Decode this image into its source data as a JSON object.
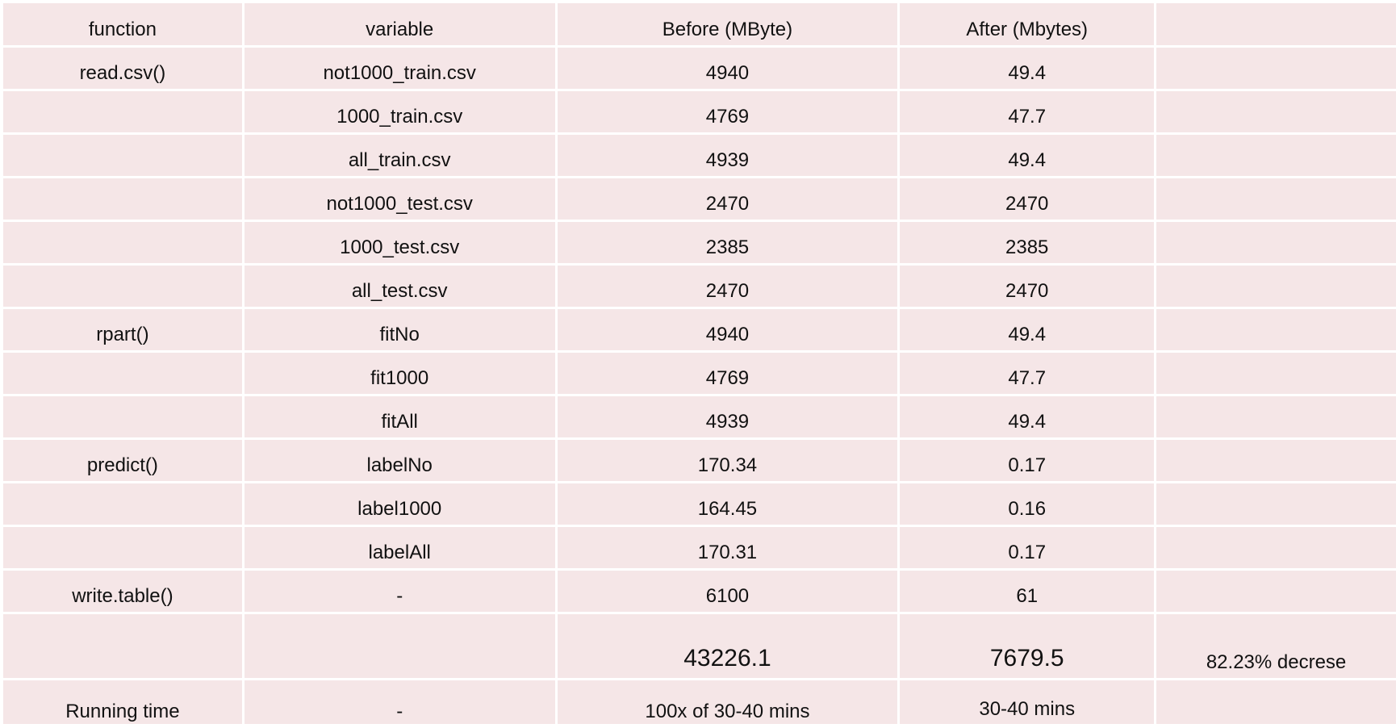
{
  "table": {
    "headers": [
      "function",
      "variable",
      "Before (MByte)",
      "After (Mbytes)",
      ""
    ],
    "rows": [
      [
        "read.csv()",
        "not1000_train.csv",
        "4940",
        "49.4",
        ""
      ],
      [
        "",
        "1000_train.csv",
        "4769",
        "47.7",
        ""
      ],
      [
        "",
        "all_train.csv",
        "4939",
        "49.4",
        ""
      ],
      [
        "",
        "not1000_test.csv",
        "2470",
        "2470",
        ""
      ],
      [
        "",
        "1000_test.csv",
        "2385",
        "2385",
        ""
      ],
      [
        "",
        "all_test.csv",
        "2470",
        "2470",
        ""
      ],
      [
        "rpart()",
        "fitNo",
        "4940",
        "49.4",
        ""
      ],
      [
        "",
        "fit1000",
        "4769",
        "47.7",
        ""
      ],
      [
        "",
        "fitAll",
        "4939",
        "49.4",
        ""
      ],
      [
        "predict()",
        "labelNo",
        "170.34",
        "0.17",
        ""
      ],
      [
        "",
        "label1000",
        "164.45",
        "0.16",
        ""
      ],
      [
        "",
        "labelAll",
        "170.31",
        "0.17",
        ""
      ],
      [
        "write.table()",
        "-",
        "6100",
        "61",
        ""
      ]
    ],
    "total": [
      "",
      "",
      "43226.1",
      "7679.5",
      "82.23% decrese"
    ],
    "running_time": [
      "Running time",
      "-",
      "100x of 30-40 mins",
      "30-40 mins",
      ""
    ]
  }
}
